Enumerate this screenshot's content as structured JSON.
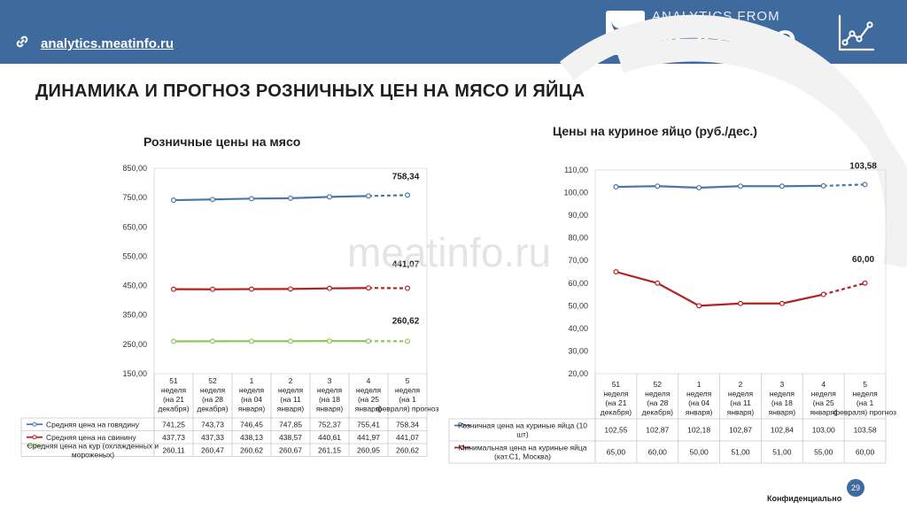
{
  "header": {
    "site_link": "analytics.meatinfo.ru",
    "brand_top": "ANALYTICS FROM",
    "brand_main": "MEATINFO"
  },
  "page_title": "ДИНАМИКА И ПРОГНОЗ РОЗНИЧНЫХ ЦЕН НА МЯСО И ЯЙЦА",
  "watermark": "meatinfo.ru",
  "footer": {
    "page_number": "29",
    "confidential": "Конфиденциально"
  },
  "colors": {
    "header": "#3f6a9d",
    "beef": "#4a76a8",
    "pork": "#b22222",
    "chicken": "#92c45a",
    "egg_min": "#b22222",
    "egg_retail": "#4a76a8"
  },
  "chart_data": [
    {
      "type": "line",
      "title": "Розничные цены на мясо",
      "categories": [
        "51 неделя (на 21 декабря)",
        "52 неделя (на 28 декабря)",
        "1 неделя (на 04 января)",
        "2 неделя (на 11 января)",
        "3 неделя (на 18 января)",
        "4 неделя (на 25 января)",
        "5 неделя (на 1 февраля) прогноз"
      ],
      "yticks": [
        "850,00",
        "750,00",
        "650,00",
        "550,00",
        "450,00",
        "350,00",
        "250,00",
        "150,00"
      ],
      "ylim": [
        150,
        850
      ],
      "forecast_last": true,
      "series": [
        {
          "name": "Средняя цена на говядину",
          "values": [
            741.25,
            743.73,
            746.45,
            747.85,
            752.37,
            755.41,
            758.34
          ],
          "labels": [
            "741,25",
            "743,73",
            "746,45",
            "747,85",
            "752,37",
            "755,41",
            "758,34"
          ],
          "end_label": "758,34"
        },
        {
          "name": "Средняя цена на свинину",
          "values": [
            437.73,
            437.33,
            438.13,
            438.57,
            440.61,
            441.97,
            441.07
          ],
          "labels": [
            "437,73",
            "437,33",
            "438,13",
            "438,57",
            "440,61",
            "441,97",
            "441,07"
          ],
          "end_label": "441,07"
        },
        {
          "name": "Средняя цена на кур (охлажденных и мороженых)",
          "values": [
            260.11,
            260.47,
            260.62,
            260.67,
            261.15,
            260.95,
            260.62
          ],
          "labels": [
            "260,11",
            "260,47",
            "260,62",
            "260,67",
            "261,15",
            "260,95",
            "260,62"
          ],
          "end_label": "260,62"
        }
      ]
    },
    {
      "type": "line",
      "title": "Цены на куриное яйцо (руб./дес.)",
      "categories": [
        "51 неделя (на 21 декабря)",
        "52 неделя (на 28 декабря)",
        "1 неделя (на 04 января)",
        "2 неделя (на 11 января)",
        "3 неделя (на 18 января)",
        "4 неделя (на 25 января)",
        "5 неделя (на 1 февраля) прогноз"
      ],
      "yticks": [
        "110,00",
        "100,00",
        "90,00",
        "80,00",
        "70,00",
        "60,00",
        "50,00",
        "40,00",
        "30,00",
        "20,00"
      ],
      "ylim": [
        20,
        110
      ],
      "forecast_last": true,
      "series": [
        {
          "name": "Розничная цена на куриные яйца (10 шт)",
          "values": [
            102.55,
            102.87,
            102.18,
            102.87,
            102.84,
            103.0,
            103.58
          ],
          "labels": [
            "102,55",
            "102,87",
            "102,18",
            "102,87",
            "102,84",
            "103,00",
            "103,58"
          ],
          "end_label": "103,58"
        },
        {
          "name": "Минимальная цена на куриные яйца (кат.С1, Москва)",
          "values": [
            65.0,
            60.0,
            50.0,
            51.0,
            51.0,
            55.0,
            60.0
          ],
          "labels": [
            "65,00",
            "60,00",
            "50,00",
            "51,00",
            "51,00",
            "55,00",
            "60,00"
          ],
          "end_label": "60,00"
        }
      ]
    }
  ]
}
